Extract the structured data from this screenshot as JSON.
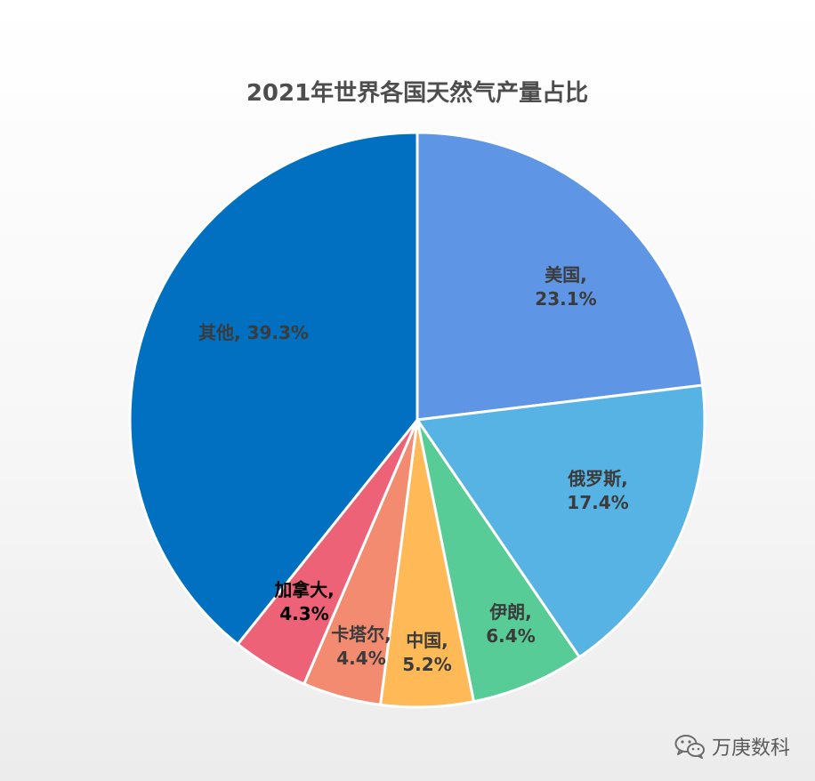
{
  "chart_data": {
    "type": "pie",
    "title": "2021年世界各国天然气产量占比",
    "slices": [
      {
        "name": "美国",
        "value": 23.1,
        "label_name": "美国,",
        "label_value": "23.1%",
        "color": "#5f95e5",
        "text_color": "#3b3b3b"
      },
      {
        "name": "俄罗斯",
        "value": 17.4,
        "label_name": "俄罗斯,",
        "label_value": "17.4%",
        "color": "#56b3e3",
        "text_color": "#3b3b3b"
      },
      {
        "name": "伊朗",
        "value": 6.4,
        "label_name": "伊朗,",
        "label_value": "6.4%",
        "color": "#57cc97",
        "text_color": "#3b3b3b"
      },
      {
        "name": "中国",
        "value": 5.2,
        "label_name": "中国,",
        "label_value": "5.2%",
        "color": "#ffb957",
        "text_color": "#3b3b3b"
      },
      {
        "name": "卡塔尔",
        "value": 4.4,
        "label_name": "卡塔尔,",
        "label_value": "4.4%",
        "color": "#f28b6f",
        "text_color": "#3b3b3b"
      },
      {
        "name": "加拿大",
        "value": 4.3,
        "label_name": "加拿大,",
        "label_value": "4.3%",
        "color": "#ee6278",
        "text_color": "#000000"
      },
      {
        "name": "其他",
        "value": 39.3,
        "label_name": "其他,",
        "label_value": "39.3%",
        "color": "#0270c0",
        "text_color": "#3b3b3b"
      }
    ],
    "start_angle": "12 o'clock",
    "direction": "clockwise",
    "legend": "none"
  },
  "watermark": {
    "text": "万庚数科",
    "icon": "wechat-icon"
  }
}
